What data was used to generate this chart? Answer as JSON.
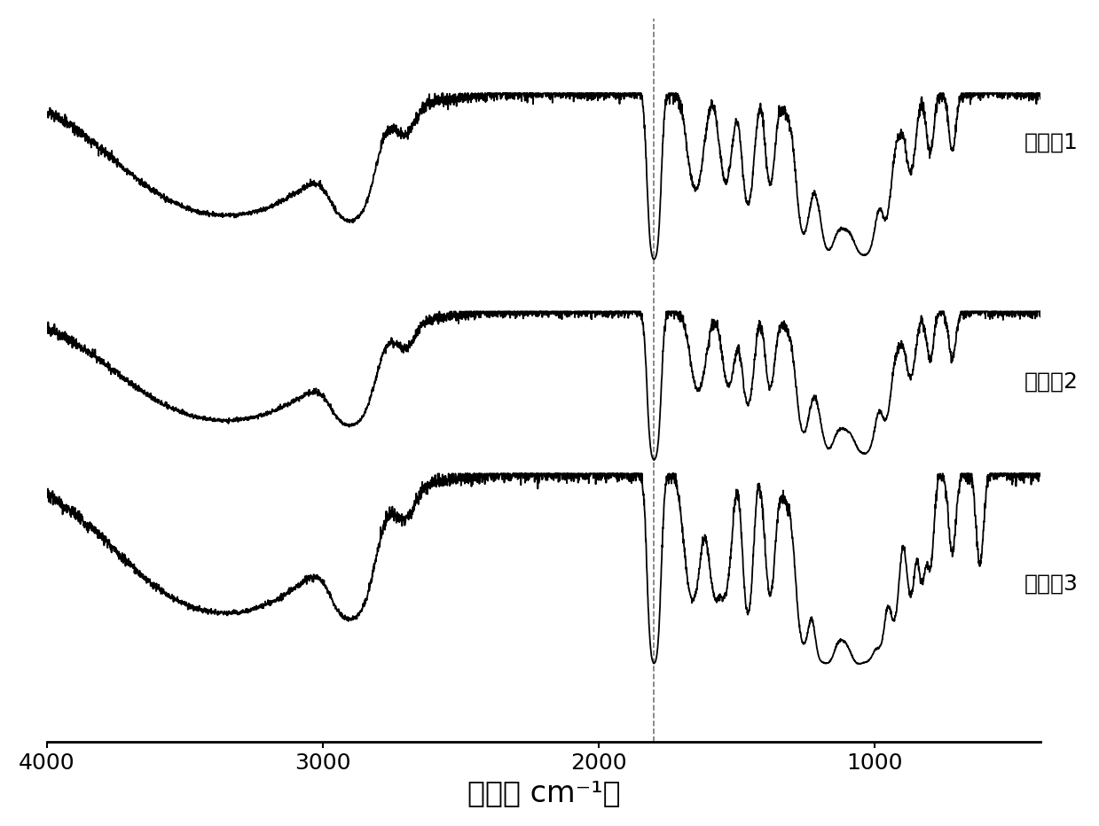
{
  "xlim": [
    4000,
    400
  ],
  "xticks": [
    4000,
    3000,
    2000,
    1000
  ],
  "xlabel": "波数（ cm⁻¹）",
  "background_color": "#ffffff",
  "line_color": "#000000",
  "labels": [
    "实施例1",
    "实施例2",
    "实施例3"
  ],
  "label_fontsize": 18,
  "xlabel_fontsize": 24,
  "xtick_fontsize": 18,
  "figsize": [
    12.39,
    9.32
  ],
  "dpi": 100,
  "dashed_line_x": 1800
}
